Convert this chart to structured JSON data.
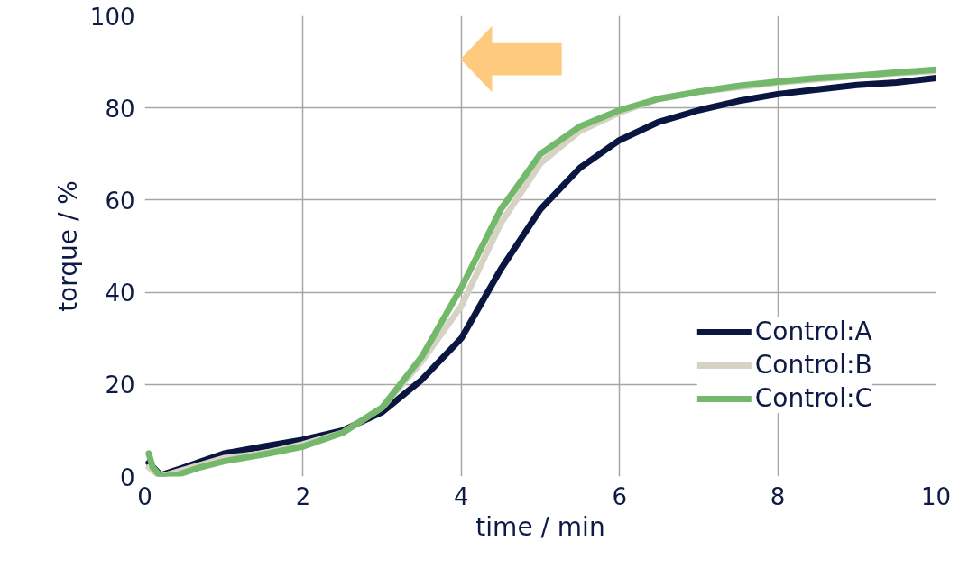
{
  "chart_data": {
    "type": "line",
    "xlabel": "time / min",
    "ylabel": "torque / %",
    "xlim": [
      0,
      10
    ],
    "xticks": [
      0,
      2,
      4,
      6,
      8,
      10
    ],
    "ylim": [
      0,
      100
    ],
    "yticks": [
      0,
      20,
      40,
      60,
      80,
      100
    ],
    "grid": true,
    "legend": "bottom right",
    "line_style": "solid",
    "series": [
      {
        "name": "Control:A",
        "color": "#0b1640",
        "x": [
          0.05,
          0.2,
          0.5,
          1,
          1.5,
          2,
          2.5,
          3,
          3.5,
          4,
          4.5,
          5,
          5.5,
          6,
          6.5,
          7,
          7.5,
          8,
          8.5,
          9,
          9.5,
          10
        ],
        "values": [
          3,
          0.3,
          2,
          5,
          6.5,
          8,
          10,
          14,
          21,
          30,
          45,
          58,
          67,
          73,
          77,
          79.5,
          81.5,
          83,
          84,
          85,
          85.5,
          86.5
        ]
      },
      {
        "name": "Control:B",
        "color": "#d6d3c4",
        "x": [
          0.05,
          0.2,
          0.5,
          1,
          1.5,
          2,
          2.5,
          3,
          3.5,
          4,
          4.5,
          5,
          5.5,
          6,
          6.5,
          7,
          7.5,
          8,
          8.5,
          9,
          9.5,
          10
        ],
        "values": [
          2,
          0,
          1.5,
          4,
          5,
          7,
          9.5,
          15,
          25,
          37,
          55,
          68,
          75,
          79,
          82,
          83.5,
          84.5,
          85.5,
          86.2,
          87,
          87.5,
          88
        ]
      },
      {
        "name": "Control:C",
        "color": "#74b96b",
        "x": [
          0.05,
          0.1,
          0.2,
          0.4,
          0.7,
          1,
          1.5,
          2,
          2.5,
          3,
          3.5,
          4,
          4.5,
          5,
          5.5,
          6,
          6.5,
          7,
          7.5,
          8,
          8.5,
          9,
          9.5,
          10
        ],
        "values": [
          5,
          2,
          0,
          0.3,
          2,
          3.3,
          4.8,
          6.5,
          9.5,
          15,
          26,
          41,
          58,
          70,
          76,
          79.5,
          82,
          83.5,
          84.8,
          85.7,
          86.5,
          87,
          87.7,
          88.3
        ]
      }
    ]
  }
}
